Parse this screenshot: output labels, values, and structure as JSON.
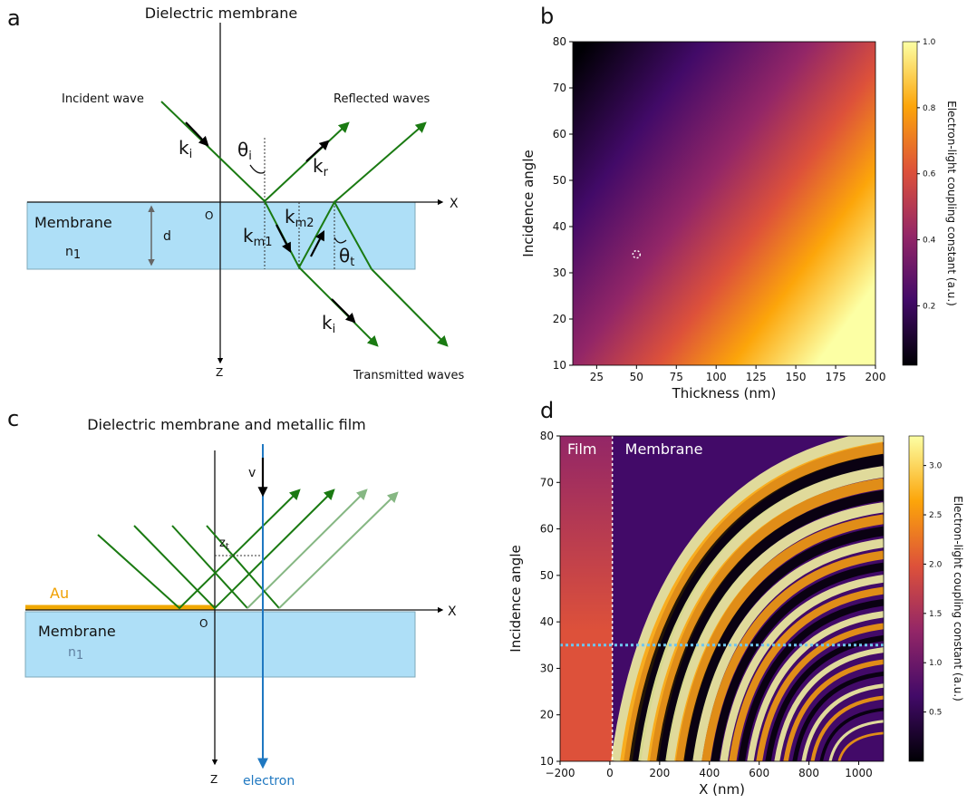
{
  "panel_a": {
    "letter": "a",
    "title": "Dielectric membrane",
    "incident": "Incident wave",
    "reflected": "Reflected waves",
    "transmitted": "Transmitted waves",
    "membrane": "Membrane",
    "n": [
      "n",
      "1"
    ],
    "d": "d",
    "origin": "O",
    "x_axis": "X",
    "z_axis": "Z",
    "ki": [
      "k",
      "i"
    ],
    "kr": [
      "k",
      "r"
    ],
    "km1": [
      "k",
      "m1"
    ],
    "km2": [
      "k",
      "m2"
    ],
    "ki_t": [
      "k",
      "i"
    ],
    "theta_i": [
      "θ",
      "i"
    ],
    "theta_t": [
      "θ",
      "t"
    ]
  },
  "panel_c": {
    "letter": "c",
    "title": "Dielectric membrane and metallic film",
    "metal": "Au",
    "membrane": "Membrane",
    "n": [
      "n",
      "1"
    ],
    "origin": "O",
    "x_axis": "X",
    "z_axis": "Z",
    "velocity": "v",
    "zt": [
      "z",
      "t"
    ],
    "electron": "electron"
  },
  "chart_data": [
    {
      "type": "heatmap",
      "letter": "b",
      "xlabel": "Thickness (nm)",
      "ylabel": "Incidence angle",
      "colorbar_label": "Electron-light coupling constant (a.u.)",
      "xlim": [
        10,
        200
      ],
      "xticks": [
        25,
        50,
        75,
        100,
        125,
        150,
        175,
        200
      ],
      "ylim": [
        10,
        80
      ],
      "yticks": [
        10,
        20,
        30,
        40,
        50,
        60,
        70,
        80
      ],
      "clim": [
        0.02,
        1.0
      ],
      "cticks": [
        0.2,
        0.4,
        0.6,
        0.8,
        {
          "value": 1.0,
          "label": "1.0"
        }
      ],
      "colormap": [
        "#000004",
        "#420a68",
        "#932667",
        "#dd513a",
        "#fca50a",
        "#fcffa4"
      ],
      "marker": {
        "x": 50,
        "y": 34
      }
    },
    {
      "type": "heatmap",
      "letter": "d",
      "xlabel": "X (nm)",
      "ylabel": "Incidence angle",
      "colorbar_label": "Electron-light coupling constant (a.u.)",
      "xlim": [
        -200,
        1100
      ],
      "xticks": [
        {
          "value": -200,
          "label": "−200"
        },
        0,
        200,
        400,
        600,
        800,
        1000
      ],
      "ylim": [
        10,
        80
      ],
      "yticks": [
        10,
        20,
        30,
        40,
        50,
        60,
        70,
        80
      ],
      "clim": [
        0,
        3.3
      ],
      "cticks": [
        0.5,
        {
          "value": 1.0,
          "label": "1.0"
        },
        1.5,
        {
          "value": 2.0,
          "label": "2.0"
        },
        2.5,
        {
          "value": 3.0,
          "label": "3.0"
        }
      ],
      "colormap": [
        "#000004",
        "#420a68",
        "#932667",
        "#dd513a",
        "#fca50a",
        "#fcffa4"
      ],
      "annotations": [
        "Film",
        "Membrane"
      ],
      "vline": 10,
      "hline": 35
    }
  ]
}
